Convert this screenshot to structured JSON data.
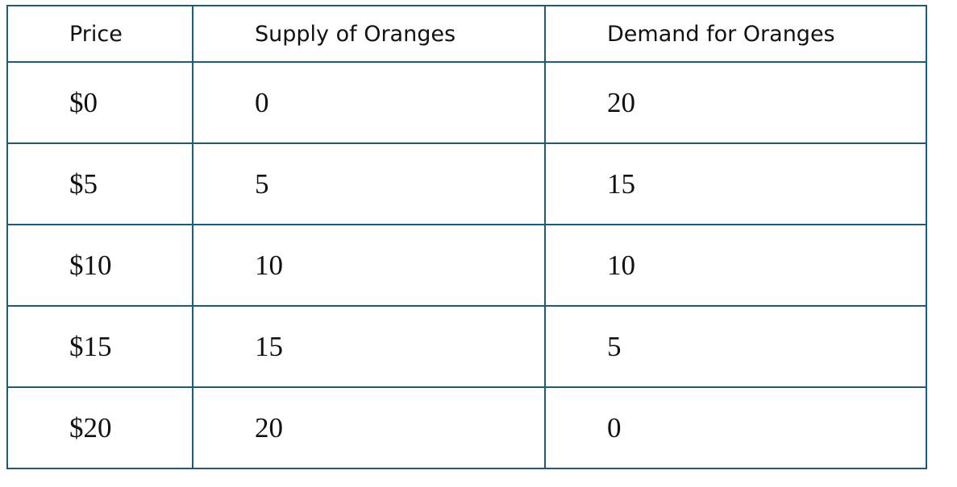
{
  "table": {
    "header": [
      "Price",
      "Supply of Oranges",
      "Demand for Oranges"
    ],
    "rows": [
      [
        "$0",
        "0",
        "20"
      ],
      [
        "$5",
        "5",
        "15"
      ],
      [
        "$10",
        "10",
        "10"
      ],
      [
        "$15",
        "15",
        "5"
      ],
      [
        "$20",
        "20",
        "0"
      ]
    ]
  }
}
